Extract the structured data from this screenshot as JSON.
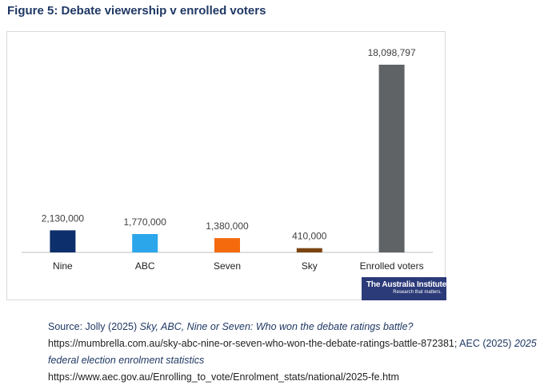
{
  "figure_title": "Figure 5: Debate viewership v enrolled voters",
  "colors": {
    "title": "#1f3864",
    "nine": "#0d2f6b",
    "abc": "#2ba6ea",
    "seven": "#f46a0c",
    "sky": "#7b4511",
    "enrolled": "#5f6366",
    "axis": "#bfbfbf"
  },
  "chart_data": {
    "type": "bar",
    "title": "Debate viewership v enrolled voters",
    "categories": [
      "Nine",
      "ABC",
      "Seven",
      "Sky",
      "Enrolled voters"
    ],
    "values": [
      2130000,
      1770000,
      1380000,
      410000,
      18098797
    ],
    "data_labels": [
      "2,130,000",
      "1,770,000",
      "1,380,000",
      "410,000",
      "18,098,797"
    ],
    "xlabel": "",
    "ylabel": "",
    "ylim": [
      0,
      18098797
    ],
    "grid": false,
    "legend": "none"
  },
  "logo": {
    "name": "The Australia Institute",
    "tagline": "Research that matters."
  },
  "source": {
    "prefix": "Source: Jolly (2025) ",
    "title1": "Sky, ABC, Nine or Seven: Who won the debate ratings battle?",
    "url1": "https://mumbrella.com.au/sky-abc-nine-or-seven-who-won-the-debate-ratings-battle-872381",
    "mid": "; AEC (2025) ",
    "title2": "2025 federal election enrolment statistics",
    "url2": "https://www.aec.gov.au/Enrolling_to_vote/Enrolment_stats/national/2025-fe.htm"
  }
}
